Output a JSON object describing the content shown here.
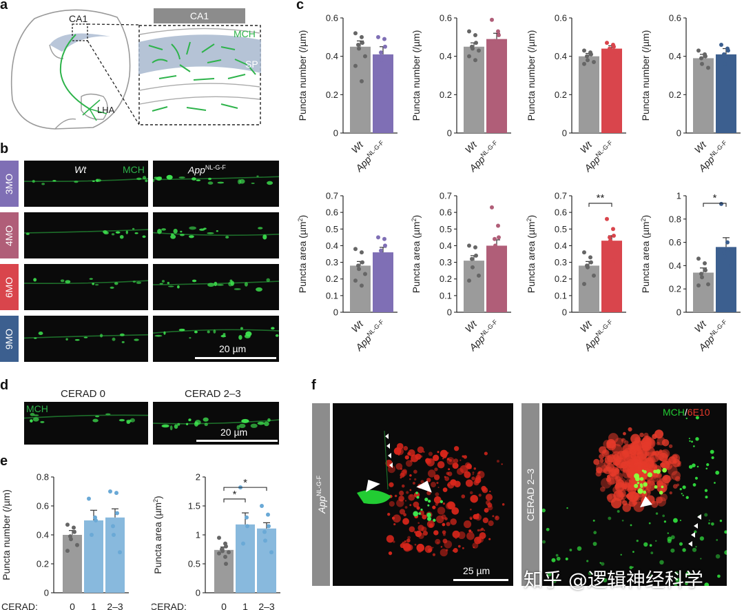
{
  "panels": {
    "a": "a",
    "b": "b",
    "c": "c",
    "d": "d",
    "e": "e",
    "f": "f"
  },
  "panel_a": {
    "ca1_label": "CA1",
    "header_label": "CA1",
    "mch_label": "MCH",
    "sp_label": "SP",
    "lha_label": "LHA",
    "color_mch": "#2db34a",
    "color_sp": "#a8b8cf"
  },
  "panel_b": {
    "wt_label": "Wt",
    "mch_label": "MCH",
    "app_label": "App",
    "app_sup": "NL-G-F",
    "scale_label": "20 µm",
    "rows": [
      {
        "label": "3MO",
        "color": "#7f6fb5"
      },
      {
        "label": "4MO",
        "color": "#b05e78"
      },
      {
        "label": "6MO",
        "color": "#d9454c"
      },
      {
        "label": "9MO",
        "color": "#3c5f8f"
      }
    ]
  },
  "panel_d": {
    "cerad0": "CERAD 0",
    "cerad23": "CERAD 2–3",
    "mch_label": "MCH",
    "scale_label": "20 µm"
  },
  "panel_f": {
    "app_label": "App",
    "app_sup": "NL-G-F",
    "cerad_label": "CERAD 2–3",
    "mch_label": "MCH",
    "slash": "/",
    "e10_label": "6E10",
    "scale_label": "25 µm",
    "color_mch": "#22cc33",
    "color_6e10": "#e53a2a"
  },
  "watermark": "知乎 @逻辑神经科学",
  "chart_data": [
    {
      "id": "c1",
      "type": "bar",
      "ylabel": "Puncta number (/µm)",
      "ylim": [
        0,
        0.6
      ],
      "ticks": [
        "0",
        "0.2",
        "0.4",
        "0.6"
      ],
      "categories": [
        "Wt",
        "App"
      ],
      "cat_sup": [
        "",
        "NL-G-F"
      ],
      "values": [
        0.45,
        0.41
      ],
      "errors": [
        0.03,
        0.04
      ],
      "colors": [
        "#9b9b9b",
        "#7f6fb5"
      ],
      "points": [
        [
          0.52,
          0.5,
          0.47,
          0.46,
          0.44,
          0.4,
          0.35,
          0.27
        ],
        [
          0.5,
          0.49,
          0.45,
          0.42,
          0.38,
          0.32,
          0.29
        ]
      ],
      "sig": ""
    },
    {
      "id": "c2",
      "type": "bar",
      "ylabel": "Puncta number (/µm)",
      "ylim": [
        0,
        0.6
      ],
      "ticks": [
        "0",
        "0.2",
        "0.4",
        "0.6"
      ],
      "categories": [
        "Wt",
        "App"
      ],
      "cat_sup": [
        "",
        "NL-G-F"
      ],
      "values": [
        0.45,
        0.49
      ],
      "errors": [
        0.02,
        0.03
      ],
      "colors": [
        "#9b9b9b",
        "#b05e78"
      ],
      "points": [
        [
          0.53,
          0.51,
          0.47,
          0.45,
          0.44,
          0.43,
          0.4,
          0.38
        ],
        [
          0.59,
          0.53,
          0.51,
          0.48,
          0.46,
          0.44,
          0.43,
          0.42
        ]
      ],
      "sig": ""
    },
    {
      "id": "c3",
      "type": "bar",
      "ylabel": "Puncta number (/µm)",
      "ylim": [
        0,
        0.6
      ],
      "ticks": [
        "0",
        "0.2",
        "0.4",
        "0.6"
      ],
      "categories": [
        "Wt",
        "App"
      ],
      "cat_sup": [
        "",
        "NL-G-F"
      ],
      "values": [
        0.4,
        0.44
      ],
      "errors": [
        0.015,
        0.015
      ],
      "colors": [
        "#9b9b9b",
        "#d9454c"
      ],
      "points": [
        [
          0.43,
          0.42,
          0.41,
          0.4,
          0.38,
          0.37,
          0.36
        ],
        [
          0.47,
          0.46,
          0.45,
          0.44,
          0.43,
          0.42,
          0.41
        ]
      ],
      "sig": ""
    },
    {
      "id": "c4",
      "type": "bar",
      "ylabel": "Puncta number (/µm)",
      "ylim": [
        0,
        0.6
      ],
      "ticks": [
        "0",
        "0.2",
        "0.4",
        "0.6"
      ],
      "categories": [
        "Wt",
        "App"
      ],
      "cat_sup": [
        "",
        "NL-G-F"
      ],
      "values": [
        0.39,
        0.41
      ],
      "errors": [
        0.02,
        0.03
      ],
      "colors": [
        "#9b9b9b",
        "#3c5f8f"
      ],
      "points": [
        [
          0.43,
          0.41,
          0.4,
          0.39,
          0.36,
          0.34
        ],
        [
          0.46,
          0.44,
          0.43,
          0.41,
          0.36,
          0.28
        ]
      ],
      "sig": ""
    },
    {
      "id": "c5",
      "type": "bar",
      "ylabel": "Puncta area (µm²)",
      "ylim": [
        0,
        0.7
      ],
      "ticks": [
        "0",
        "0.1",
        "0.2",
        "0.3",
        "0.4",
        "0.5",
        "0.6",
        "0.7"
      ],
      "categories": [
        "Wt",
        "App"
      ],
      "cat_sup": [
        "",
        "NL-G-F"
      ],
      "values": [
        0.28,
        0.36
      ],
      "errors": [
        0.025,
        0.03
      ],
      "colors": [
        "#9b9b9b",
        "#7f6fb5"
      ],
      "points": [
        [
          0.38,
          0.36,
          0.3,
          0.28,
          0.26,
          0.23,
          0.19,
          0.16
        ],
        [
          0.45,
          0.44,
          0.4,
          0.37,
          0.35,
          0.32,
          0.24
        ]
      ],
      "sig": ""
    },
    {
      "id": "c6",
      "type": "bar",
      "ylabel": "Puncta area (µm²)",
      "ylim": [
        0,
        0.7
      ],
      "ticks": [
        "0",
        "0.1",
        "0.2",
        "0.3",
        "0.4",
        "0.5",
        "0.6",
        "0.7"
      ],
      "categories": [
        "Wt",
        "App"
      ],
      "cat_sup": [
        "",
        "NL-G-F"
      ],
      "values": [
        0.31,
        0.4
      ],
      "errors": [
        0.03,
        0.035
      ],
      "colors": [
        "#9b9b9b",
        "#b05e78"
      ],
      "points": [
        [
          0.4,
          0.39,
          0.34,
          0.32,
          0.27,
          0.22,
          0.19
        ],
        [
          0.63,
          0.52,
          0.45,
          0.44,
          0.4,
          0.36,
          0.3,
          0.28,
          0.21
        ]
      ],
      "sig": ""
    },
    {
      "id": "c7",
      "type": "bar",
      "ylabel": "Puncta area (µm²)",
      "ylim": [
        0,
        0.7
      ],
      "ticks": [
        "0",
        "0.1",
        "0.2",
        "0.3",
        "0.4",
        "0.5",
        "0.6",
        "0.7"
      ],
      "categories": [
        "Wt",
        "App"
      ],
      "cat_sup": [
        "",
        "NL-G-F"
      ],
      "values": [
        0.28,
        0.43
      ],
      "errors": [
        0.025,
        0.03
      ],
      "colors": [
        "#9b9b9b",
        "#d9454c"
      ],
      "points": [
        [
          0.36,
          0.33,
          0.3,
          0.28,
          0.27,
          0.22,
          0.17
        ],
        [
          0.56,
          0.5,
          0.46,
          0.45,
          0.43,
          0.38,
          0.37,
          0.31
        ]
      ],
      "sig": "**"
    },
    {
      "id": "c8",
      "type": "bar",
      "ylabel": "Puncta area (µm²)",
      "ylim": [
        0,
        1
      ],
      "ticks": [
        "0",
        "0.2",
        "0.4",
        "0.6",
        "0.8",
        "1"
      ],
      "categories": [
        "Wt",
        "App"
      ],
      "cat_sup": [
        "",
        "NL-G-F"
      ],
      "values": [
        0.34,
        0.56
      ],
      "errors": [
        0.04,
        0.08
      ],
      "colors": [
        "#9b9b9b",
        "#3c5f8f"
      ],
      "points": [
        [
          0.46,
          0.42,
          0.36,
          0.33,
          0.3,
          0.24,
          0.23
        ],
        [
          0.93,
          0.6,
          0.54,
          0.52,
          0.48,
          0.4
        ]
      ],
      "sig": "*"
    },
    {
      "id": "e1",
      "type": "bar",
      "ylabel": "Puncta number (/µm)",
      "ylim": [
        0,
        0.8
      ],
      "ticks": [
        "0",
        "0.2",
        "0.4",
        "0.6",
        "0.8"
      ],
      "xlabel_prefix": "CERAD:",
      "categories": [
        "0",
        "1",
        "2–3"
      ],
      "values": [
        0.4,
        0.5,
        0.52
      ],
      "errors": [
        0.03,
        0.07,
        0.06
      ],
      "colors": [
        "#9b9b9b",
        "#88b9dd",
        "#88b9dd"
      ],
      "points": [
        [
          0.47,
          0.45,
          0.42,
          0.39,
          0.37,
          0.33,
          0.29
        ],
        [
          0.65,
          0.52,
          0.5,
          0.4
        ],
        [
          0.7,
          0.69,
          0.55,
          0.46,
          0.4,
          0.28
        ]
      ],
      "sig": ""
    },
    {
      "id": "e2",
      "type": "bar",
      "ylabel": "Puncta area (µm²)",
      "ylim": [
        0,
        2
      ],
      "ticks": [
        "0",
        "0.5",
        "1",
        "1.5",
        "2"
      ],
      "xlabel_prefix": "CERAD:",
      "categories": [
        "0",
        "1",
        "2–3"
      ],
      "values": [
        0.74,
        1.18,
        1.11
      ],
      "errors": [
        0.05,
        0.2,
        0.1
      ],
      "colors": [
        "#9b9b9b",
        "#88b9dd",
        "#88b9dd"
      ],
      "points": [
        [
          0.95,
          0.85,
          0.8,
          0.75,
          0.72,
          0.7,
          0.68,
          0.62,
          0.5
        ],
        [
          1.82,
          1.3,
          1.15,
          0.85
        ],
        [
          1.5,
          1.35,
          1.15,
          1.05,
          0.9,
          0.7
        ]
      ],
      "sig": "*"
    }
  ]
}
